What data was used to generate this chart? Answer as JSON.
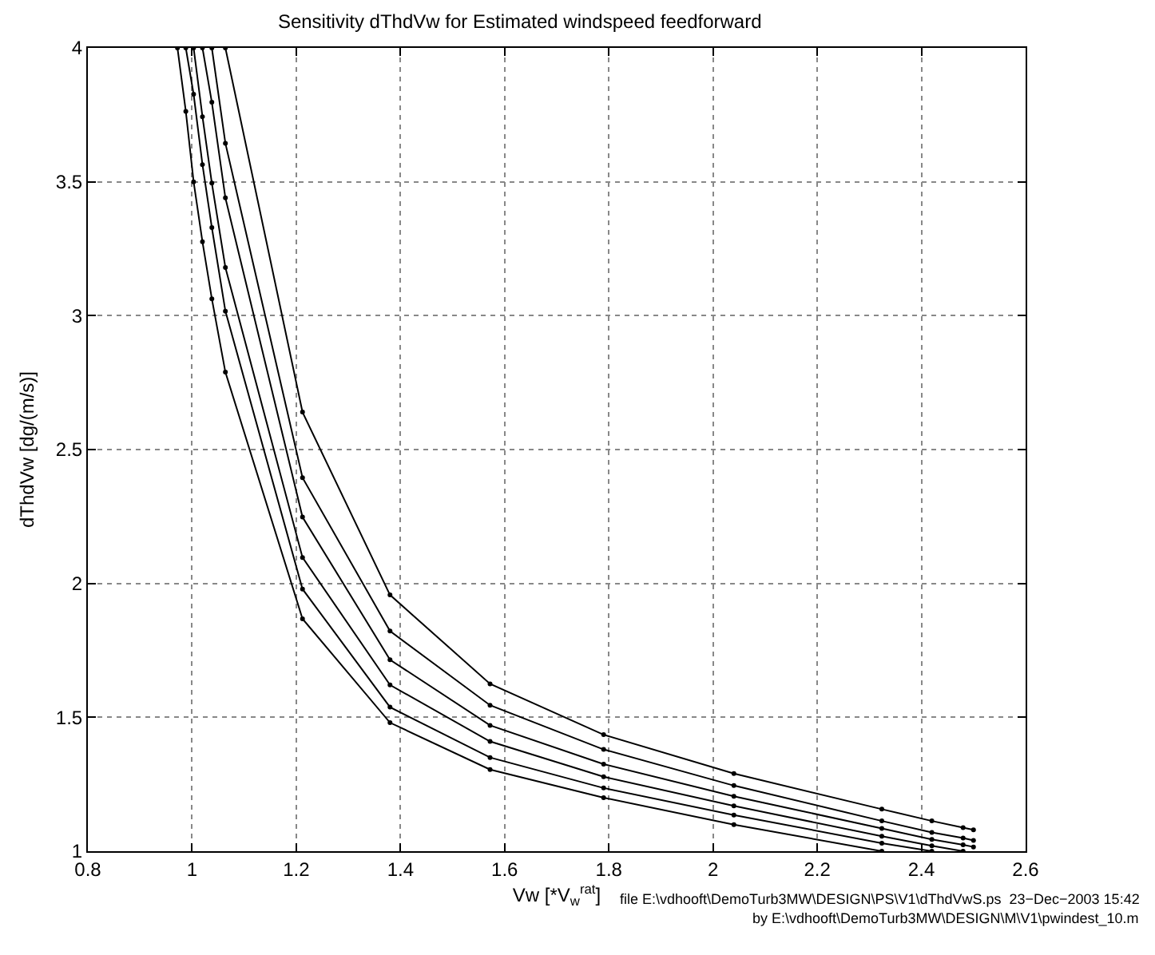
{
  "chart_data": {
    "type": "line",
    "title": "Sensitivity dThdVw for Estimated windspeed feedforward",
    "xlabel": "Vw [*V$_{w}$$^{rat}$]",
    "ylabel": "dThdVw [dg/(m/s)]",
    "series": [
      {
        "color": "#000000",
        "x": [
          0.972,
          0.988,
          1.003,
          1.02,
          1.038,
          1.064,
          1.212,
          1.38,
          1.572,
          1.79,
          2.04,
          2.324
        ],
        "values": [
          4,
          3.763,
          3.5,
          3.276,
          3.063,
          2.789,
          1.868,
          1.48,
          1.305,
          1.2,
          1.099,
          1.0
        ]
      },
      {
        "color": "#000000",
        "x": [
          0.988,
          1.003,
          1.02,
          1.038,
          1.064,
          1.212,
          1.38,
          1.572,
          1.79,
          2.04,
          2.324,
          2.42
        ],
        "values": [
          4,
          3.827,
          3.564,
          3.329,
          3.017,
          1.979,
          1.538,
          1.35,
          1.236,
          1.135,
          1.03,
          1.0
        ]
      },
      {
        "color": "#000000",
        "x": [
          1.003,
          1.02,
          1.038,
          1.064,
          1.212,
          1.38,
          1.572,
          1.79,
          2.04,
          2.324,
          2.42,
          2.48
        ],
        "values": [
          4,
          3.743,
          3.495,
          3.18,
          2.097,
          1.621,
          1.41,
          1.278,
          1.169,
          1.056,
          1.02,
          1.0
        ]
      },
      {
        "color": "#000000",
        "x": [
          1.02,
          1.038,
          1.064,
          1.212,
          1.38,
          1.572,
          1.79,
          2.04,
          2.324,
          2.42,
          2.48,
          2.5
        ],
        "values": [
          4,
          3.797,
          3.44,
          2.248,
          1.715,
          1.47,
          1.325,
          1.205,
          1.085,
          1.044,
          1.024,
          1.016
        ]
      },
      {
        "color": "#000000",
        "x": [
          1.038,
          1.064,
          1.212,
          1.38,
          1.572,
          1.79,
          2.04,
          2.324,
          2.42,
          2.48,
          2.5
        ],
        "values": [
          4,
          3.644,
          2.395,
          1.822,
          1.545,
          1.38,
          1.245,
          1.113,
          1.07,
          1.049,
          1.04
        ]
      },
      {
        "color": "#000000",
        "x": [
          1.064,
          1.212,
          1.38,
          1.572,
          1.79,
          2.04,
          2.324,
          2.42,
          2.48,
          2.5
        ],
        "values": [
          4,
          2.64,
          1.957,
          1.625,
          1.435,
          1.29,
          1.157,
          1.113,
          1.088,
          1.08
        ]
      }
    ],
    "xlim": [
      0.8,
      2.6
    ],
    "xticks": [
      0.8,
      1,
      1.2,
      1.4,
      1.6,
      1.8,
      2,
      2.2,
      2.4,
      2.6
    ],
    "ylim": [
      1,
      4
    ],
    "yticks": [
      1,
      1.5,
      2,
      2.5,
      3,
      3.5,
      4
    ],
    "grid": true,
    "marker": "circle",
    "line_style": "solid",
    "annotations": [
      "file E:\\vdhooft\\DemoTurb3MW\\DESIGN\\PS\\V1\\dThdVwS.ps  23−Dec−2003 15:42",
      "by E:\\vdhooft\\DemoTurb3MW\\DESIGN\\M\\V1\\pwindest_10.m"
    ]
  }
}
